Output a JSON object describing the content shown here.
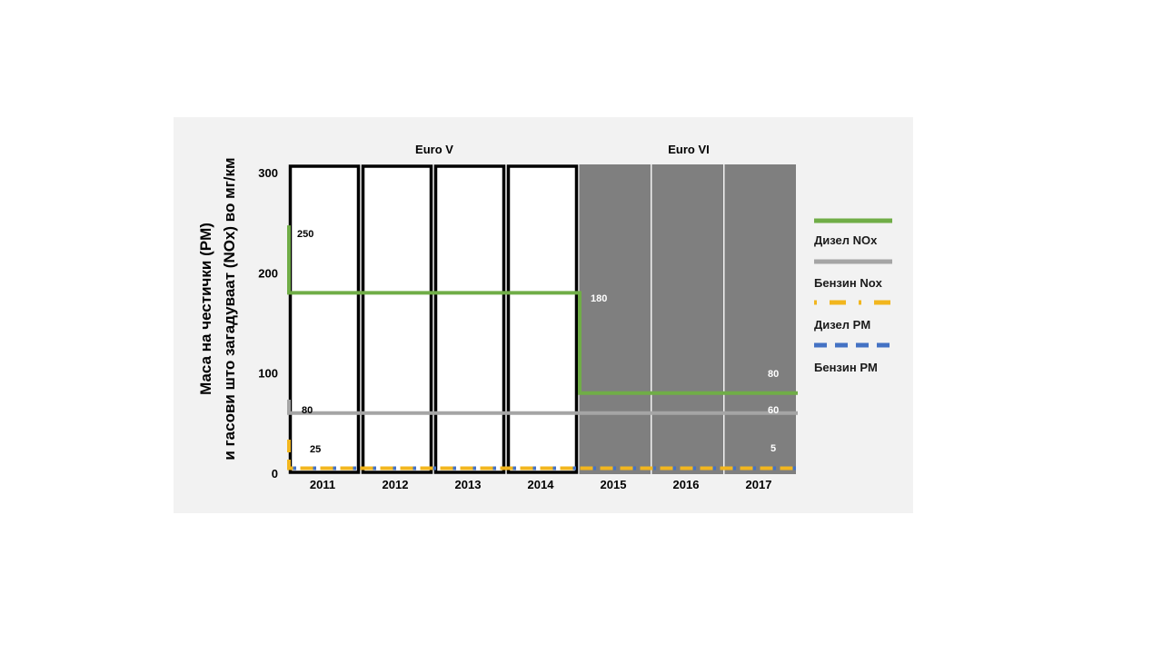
{
  "chart_data": {
    "type": "line",
    "title": "",
    "ylabel_lines": [
      "Маса на честички (PM)",
      "и гасови што загадуваат  (NOx) во мг/км"
    ],
    "xlabel": "",
    "categories": [
      "2011",
      "2012",
      "2013",
      "2014",
      "2015",
      "2016",
      "2017"
    ],
    "ylim": [
      0,
      300
    ],
    "yticks": [
      "0",
      "100",
      "200",
      "300"
    ],
    "eras": [
      {
        "label": "Euro V",
        "years": [
          "2011",
          "2012",
          "2013",
          "2014"
        ]
      },
      {
        "label": "Euro VI",
        "years": [
          "2015",
          "2016",
          "2017"
        ]
      }
    ],
    "series": [
      {
        "name": "Дизел NOx",
        "color": "#70ad47",
        "style": "solid",
        "values": [
          180,
          180,
          180,
          180,
          80,
          80,
          80
        ],
        "labels": [
          "250",
          "180",
          "80"
        ]
      },
      {
        "name": "Бензин Nox",
        "color": "#a5a5a5",
        "style": "solid",
        "values": [
          60,
          60,
          60,
          60,
          60,
          60,
          60
        ],
        "labels": [
          "80",
          "60"
        ]
      },
      {
        "name": "Дизел PM",
        "color": "#f2b61e",
        "style": "dashed",
        "values": [
          5,
          5,
          5,
          5,
          5,
          5,
          5
        ],
        "labels": [
          "25",
          "5"
        ]
      },
      {
        "name": "Бензин PM",
        "color": "#4472c4",
        "style": "dashed",
        "values": [
          5,
          5,
          5,
          5,
          5,
          5,
          5
        ]
      }
    ],
    "grid": false,
    "legend": "right"
  }
}
